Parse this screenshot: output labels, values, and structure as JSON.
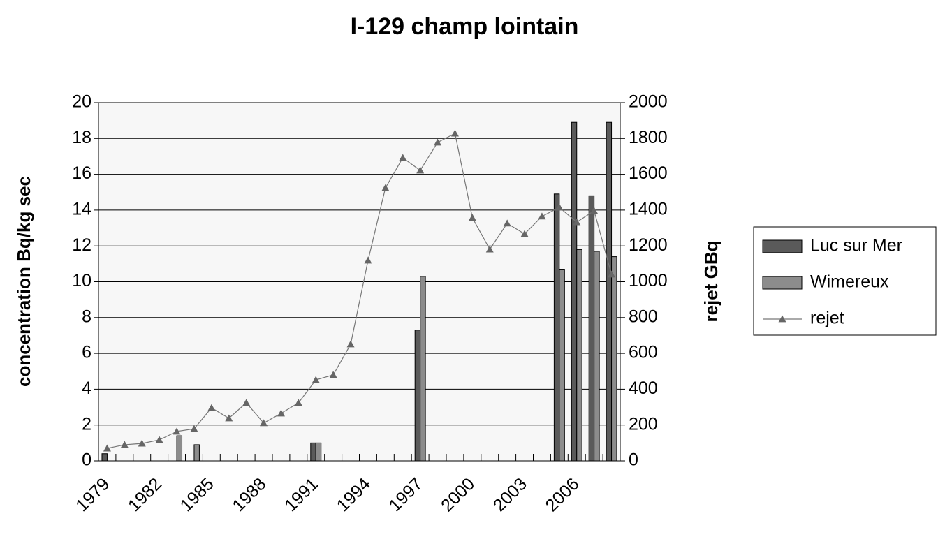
{
  "chart_data": {
    "type": "bar",
    "title": "I-129 champ lointain",
    "y_label": "concentration Bq/kg sec",
    "y2_label": "rejet GBq",
    "categories": [
      "1979",
      null,
      null,
      "1982",
      null,
      null,
      "1985",
      null,
      null,
      "1988",
      null,
      null,
      "1991",
      null,
      null,
      "1994",
      null,
      null,
      "1997",
      null,
      null,
      "2000",
      null,
      null,
      "2003",
      null,
      null,
      "2006",
      null,
      null
    ],
    "series": [
      {
        "name": "Luc sur Mer",
        "color": "#5a5a5a",
        "values": [
          0.4,
          null,
          null,
          null,
          null,
          null,
          null,
          null,
          null,
          null,
          null,
          null,
          1,
          null,
          null,
          null,
          null,
          null,
          7.3,
          null,
          null,
          null,
          null,
          null,
          null,
          null,
          14.9,
          18.9,
          14.8,
          18.9
        ]
      },
      {
        "name": "Wimereux",
        "color": "#8c8c8c",
        "values": [
          null,
          null,
          null,
          null,
          1.4,
          0.9,
          null,
          null,
          null,
          null,
          null,
          null,
          1,
          null,
          null,
          null,
          null,
          null,
          10.3,
          null,
          null,
          null,
          null,
          null,
          null,
          null,
          10.7,
          11.8,
          11.7,
          11.4
        ]
      },
      {
        "name": "rejet",
        "color": "#777777",
        "type": "line",
        "axis": "y2",
        "values": [
          70,
          90,
          97,
          117,
          164,
          179,
          296,
          238,
          324,
          211,
          265,
          324,
          452,
          480,
          651,
          1119,
          1524,
          1692,
          1622,
          1778,
          1828,
          1357,
          1181,
          1326,
          1267,
          1365,
          1415,
          1333,
          1396,
          1041
        ]
      }
    ],
    "ylim": [
      0,
      20
    ],
    "yticks": [
      0,
      2,
      4,
      6,
      8,
      10,
      12,
      14,
      16,
      18,
      20
    ],
    "y2lim": [
      0,
      2000
    ],
    "y2ticks": [
      0,
      200,
      400,
      600,
      800,
      1000,
      1200,
      1400,
      1600,
      1800,
      2000
    ],
    "grid": true,
    "legend": "right"
  }
}
